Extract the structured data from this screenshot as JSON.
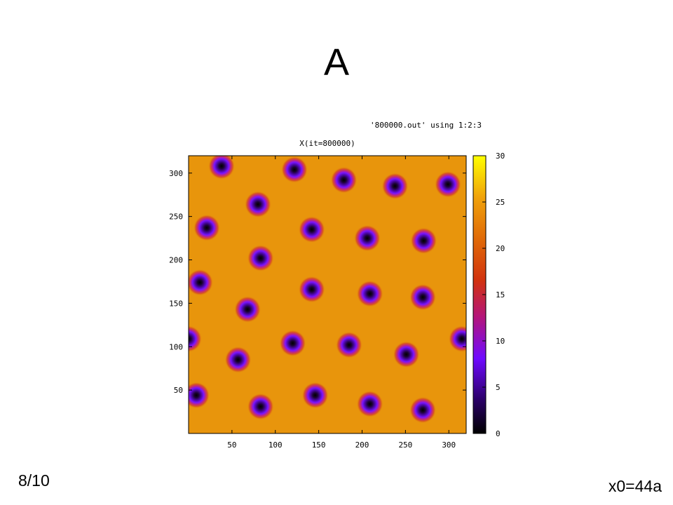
{
  "slide": {
    "title": "A",
    "page_number": "8/10",
    "corner_note": "x0=44a"
  },
  "chart_data": {
    "type": "heatmap",
    "title": "X(it=800000)",
    "legend_label": "'800000.out' using 1:2:3",
    "xlabel": "",
    "ylabel": "",
    "xlim": [
      0,
      320
    ],
    "ylim": [
      0,
      320
    ],
    "x_ticks": [
      "50",
      "100",
      "150",
      "200",
      "250",
      "300"
    ],
    "y_ticks": [
      "50",
      "100",
      "150",
      "200",
      "250",
      "300"
    ],
    "colorbar": {
      "range": [
        0,
        30
      ],
      "ticks": [
        "0",
        "5",
        "10",
        "15",
        "20",
        "25",
        "30"
      ]
    },
    "background_value": 24,
    "spot_min_value": 0,
    "spot_positions": [
      [
        38,
        308
      ],
      [
        122,
        304
      ],
      [
        179,
        292
      ],
      [
        238,
        285
      ],
      [
        299,
        287
      ],
      [
        80,
        264
      ],
      [
        21,
        237
      ],
      [
        142,
        235
      ],
      [
        206,
        225
      ],
      [
        271,
        222
      ],
      [
        83,
        202
      ],
      [
        13,
        174
      ],
      [
        142,
        166
      ],
      [
        209,
        161
      ],
      [
        270,
        157
      ],
      [
        68,
        143
      ],
      [
        0,
        109
      ],
      [
        120,
        104
      ],
      [
        185,
        102
      ],
      [
        251,
        91
      ],
      [
        315,
        109
      ],
      [
        57,
        85
      ],
      [
        9,
        44
      ],
      [
        146,
        44
      ],
      [
        83,
        31
      ],
      [
        209,
        34
      ],
      [
        270,
        27
      ]
    ]
  }
}
